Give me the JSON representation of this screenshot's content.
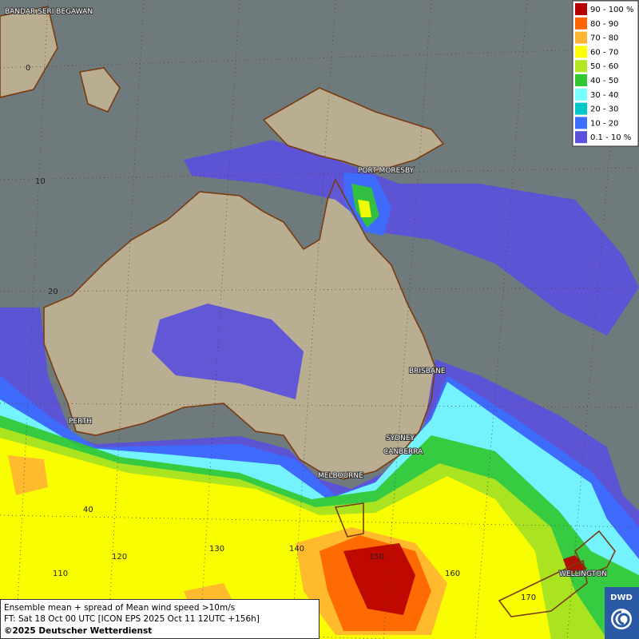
{
  "map": {
    "cities": [
      "BANDAR SERI BEGAWAN",
      "PORT MORESBY",
      "BRISBANE",
      "PERTH",
      "SYDNEY",
      "CANBERRA",
      "MELBOURNE",
      "WELLINGTON"
    ],
    "grid_labels": [
      "0",
      "10",
      "20",
      "40",
      "110",
      "120",
      "130",
      "140",
      "150",
      "160",
      "170"
    ]
  },
  "legend": [
    {
      "label": "90 - 100 %",
      "color": "#b80000"
    },
    {
      "label": "80 - 90",
      "color": "#ff6400"
    },
    {
      "label": "70 - 80",
      "color": "#ffb432"
    },
    {
      "label": "60 - 70",
      "color": "#ffff00"
    },
    {
      "label": "50 - 60",
      "color": "#b4e61e"
    },
    {
      "label": "40 - 50",
      "color": "#32c832"
    },
    {
      "label": "30 - 40",
      "color": "#78ffff"
    },
    {
      "label": "20 - 30",
      "color": "#00c8c8"
    },
    {
      "label": "10 - 20",
      "color": "#3c6eff"
    },
    {
      "label": "0.1 - 10 %",
      "color": "#5a50dc"
    }
  ],
  "footer": {
    "line1": "Ensemble mean + spread of Mean wind speed >10m/s",
    "line2": "FT: Sat 18 Oct 00 UTC [ICON EPS 2025 Oct 11 12UTC +156h]",
    "line3": "©2025 Deutscher Wetterdienst"
  },
  "logo": "DWD"
}
